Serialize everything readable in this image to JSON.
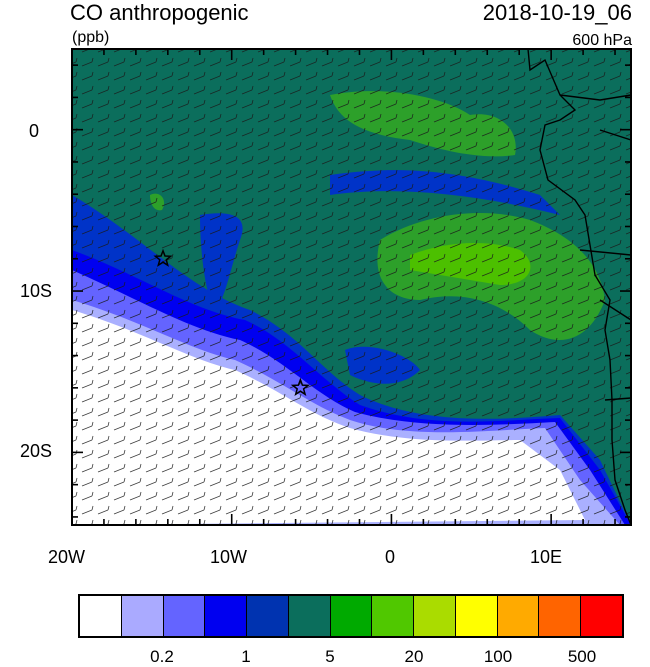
{
  "header": {
    "variable": "CO anthropogenic",
    "units": "(ppb)",
    "datetime": "2018-10-19_06",
    "level": "600 hPa"
  },
  "map": {
    "lon_ticks": [
      "20W",
      "10W",
      "0",
      "10E"
    ],
    "lat_ticks": [
      "0",
      "10S",
      "20S"
    ],
    "extent": {
      "lon_min": -20,
      "lon_max": 15,
      "lat_min": -24.5,
      "lat_max": 5
    },
    "markers": [
      {
        "name": "star-marker-1",
        "lon": -14.3,
        "lat": -8.0
      },
      {
        "name": "star-marker-2",
        "lon": -5.7,
        "lat": -16.0
      }
    ],
    "field_colors": {
      "ocean_main": "#0b6e5c",
      "band_low": "#0033c8",
      "band_lighter": "#0000f0",
      "band_light": "#6464ff",
      "band_pale": "#aab0ff",
      "clean": "#ffffff",
      "high": "#00aa00",
      "higher": "#4cc000"
    }
  },
  "colorbar": {
    "colors": [
      "#ffffff",
      "#aaaaff",
      "#6464ff",
      "#0000f0",
      "#0033b0",
      "#0b6e5c",
      "#00aa00",
      "#50c800",
      "#aadc00",
      "#ffff00",
      "#ffaa00",
      "#ff6400",
      "#ff0000"
    ],
    "labels": [
      {
        "text": "0.2",
        "boundary": 2
      },
      {
        "text": "1",
        "boundary": 4
      },
      {
        "text": "5",
        "boundary": 6
      },
      {
        "text": "20",
        "boundary": 8
      },
      {
        "text": "100",
        "boundary": 10
      },
      {
        "text": "500",
        "boundary": 12
      }
    ]
  }
}
